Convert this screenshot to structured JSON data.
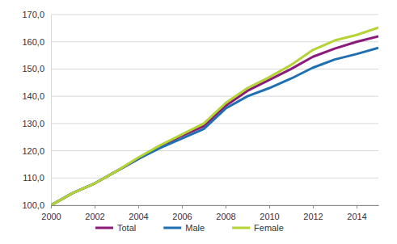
{
  "chart_data": {
    "type": "line",
    "x": [
      2000,
      2001,
      2002,
      2003,
      2004,
      2005,
      2006,
      2007,
      2008,
      2009,
      2010,
      2011,
      2012,
      2013,
      2014,
      2015
    ],
    "series": [
      {
        "name": "Total",
        "color": "#8b1a7a",
        "values": [
          100,
          104.5,
          108,
          112.5,
          117,
          121.5,
          125.5,
          129,
          136.5,
          142,
          146,
          150,
          154.5,
          157.5,
          160,
          162
        ]
      },
      {
        "name": "Male",
        "color": "#1f6fb2",
        "values": [
          100,
          104.5,
          108,
          112.5,
          117,
          121,
          124.5,
          128,
          135.5,
          140,
          143,
          146.5,
          150.5,
          153.5,
          155.5,
          157.8
        ]
      },
      {
        "name": "Female",
        "color": "#b5d334",
        "values": [
          100,
          104.5,
          108,
          112.5,
          117.5,
          122,
          126,
          130,
          137.5,
          143,
          147,
          151.5,
          157,
          160.5,
          162.5,
          165.2
        ]
      }
    ],
    "xlim": [
      2000,
      2015
    ],
    "xticks": [
      2000,
      2002,
      2004,
      2006,
      2008,
      2010,
      2012,
      2014
    ],
    "ylim": [
      100,
      170
    ],
    "yticks": [
      {
        "value": 100,
        "label": "100,0"
      },
      {
        "value": 110,
        "label": "110,0"
      },
      {
        "value": 120,
        "label": "120,0"
      },
      {
        "value": 130,
        "label": "130,0"
      },
      {
        "value": 140,
        "label": "140,0"
      },
      {
        "value": 150,
        "label": "150,0"
      },
      {
        "value": 160,
        "label": "160,0"
      },
      {
        "value": 170,
        "label": "170,0"
      }
    ],
    "grid": true,
    "legend": "bottom"
  }
}
